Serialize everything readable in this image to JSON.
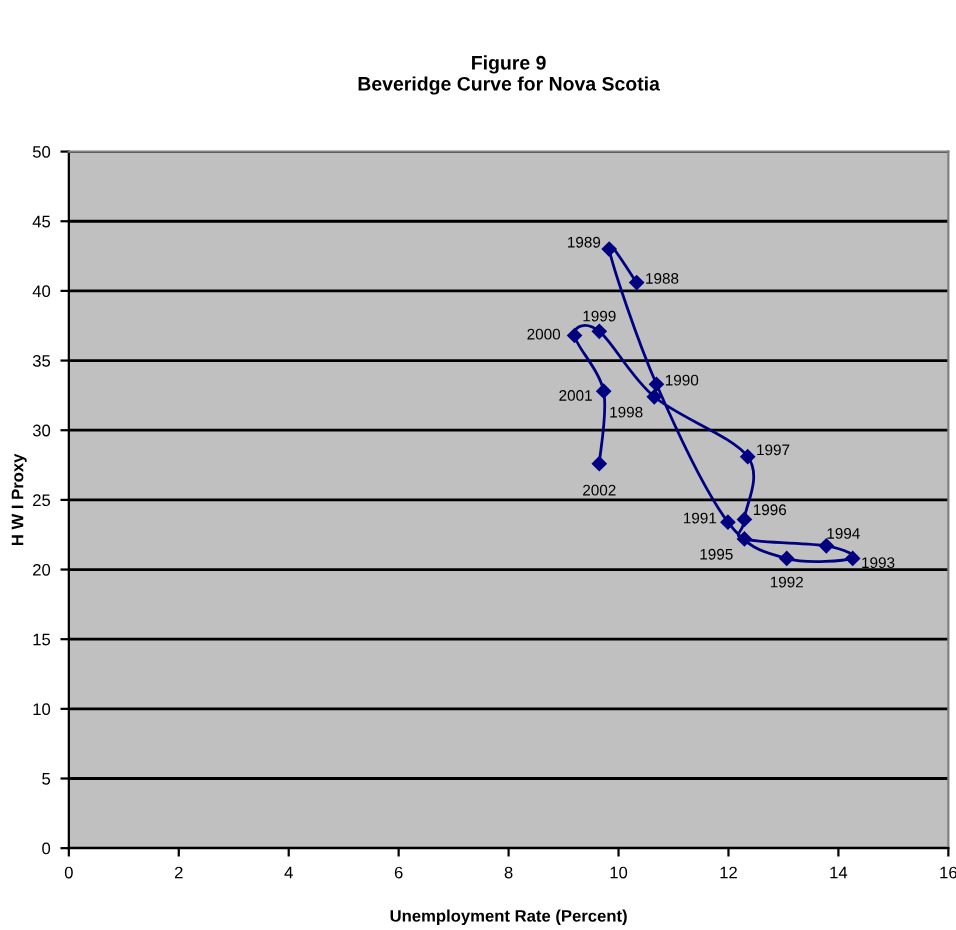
{
  "chart_data": {
    "type": "line",
    "title": "Figure 9\nBeveridge Curve for Nova Scotia",
    "xlabel": "Unemployment Rate (Percent)",
    "ylabel": "H W I Proxy",
    "x": [
      10.33,
      9.83,
      10.69,
      11.99,
      13.06,
      14.26,
      13.78,
      12.29,
      12.29,
      12.35,
      10.65,
      9.65,
      9.2,
      9.73,
      9.65
    ],
    "series": [
      {
        "color": "#000080",
        "values": [
          40.6,
          43.0,
          33.3,
          23.4,
          20.8,
          20.8,
          21.7,
          22.2,
          23.6,
          28.1,
          32.4,
          37.1,
          36.8,
          32.8,
          27.6
        ]
      }
    ],
    "annotations": [
      {
        "text": "1988",
        "x": 10.33,
        "y": 40.6
      },
      {
        "text": "1989",
        "x": 9.83,
        "y": 43.0
      },
      {
        "text": "1990",
        "x": 10.69,
        "y": 33.3
      },
      {
        "text": "1991",
        "x": 11.99,
        "y": 23.4
      },
      {
        "text": "1992",
        "x": 13.06,
        "y": 20.8
      },
      {
        "text": "1993",
        "x": 14.26,
        "y": 20.8
      },
      {
        "text": "1994",
        "x": 13.78,
        "y": 21.7
      },
      {
        "text": "1995",
        "x": 12.29,
        "y": 22.2
      },
      {
        "text": "1996",
        "x": 12.29,
        "y": 23.6
      },
      {
        "text": "1997",
        "x": 12.35,
        "y": 28.1
      },
      {
        "text": "1998",
        "x": 10.65,
        "y": 32.4
      },
      {
        "text": "1999",
        "x": 9.65,
        "y": 37.1
      },
      {
        "text": "2000",
        "x": 9.2,
        "y": 36.8
      },
      {
        "text": "2001",
        "x": 9.73,
        "y": 32.8
      },
      {
        "text": "2002",
        "x": 9.65,
        "y": 27.6
      }
    ],
    "xlim": [
      0,
      16
    ],
    "xticks": [
      0,
      2,
      4,
      6,
      8,
      10,
      12,
      14,
      16
    ],
    "ylim": [
      0,
      50
    ],
    "yticks": [
      0,
      5,
      10,
      15,
      20,
      25,
      30,
      35,
      40,
      45,
      50
    ],
    "grid": "y",
    "marker": "diamond",
    "line_style": "solid"
  }
}
